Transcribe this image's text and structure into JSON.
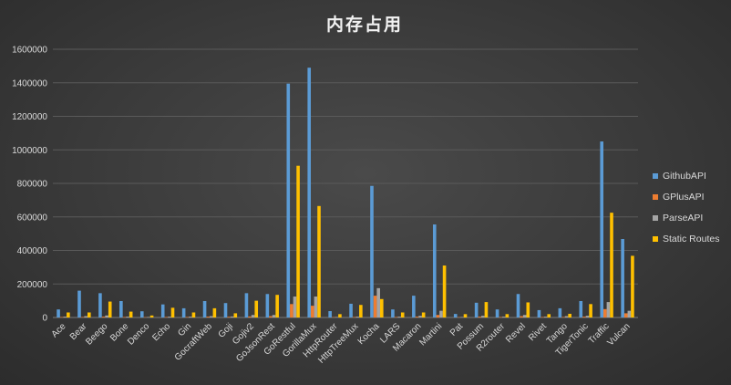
{
  "chart_data": {
    "type": "bar",
    "title": "内存占用",
    "categories": [
      "Ace",
      "Bear",
      "Beego",
      "Bone",
      "Denco",
      "Echo",
      "Gin",
      "GocraftWeb",
      "Goji",
      "Gojiv2",
      "GoJsonRest",
      "GoRestful",
      "GorillaMux",
      "HttpRouter",
      "HttpTreeMux",
      "Kocha",
      "LARS",
      "Macaron",
      "Martini",
      "Pat",
      "Possum",
      "R2router",
      "Revel",
      "Rivet",
      "Tango",
      "TigerTonic",
      "Traffic",
      "Vulcan"
    ],
    "series": [
      {
        "name": "GithubAPI",
        "color": "#5b9bd5",
        "values": [
          48000,
          160000,
          145000,
          98000,
          37000,
          78000,
          55000,
          98000,
          86000,
          145000,
          140000,
          1395000,
          1490000,
          38000,
          82000,
          785000,
          48000,
          130000,
          555000,
          21000,
          88000,
          48000,
          140000,
          44000,
          55000,
          98000,
          1050000,
          468000
        ]
      },
      {
        "name": "GPlusAPI",
        "color": "#ed7d31",
        "values": [
          3000,
          3000,
          5000,
          3000,
          2000,
          3000,
          3000,
          5000,
          4000,
          6000,
          8000,
          80000,
          70000,
          2000,
          3000,
          130000,
          3000,
          5000,
          15000,
          2000,
          5000,
          3000,
          8000,
          3000,
          3000,
          5000,
          50000,
          25000
        ]
      },
      {
        "name": "ParseAPI",
        "color": "#a5a5a5",
        "values": [
          5000,
          8000,
          12000,
          5000,
          3000,
          5000,
          5000,
          8000,
          6000,
          15000,
          15000,
          125000,
          125000,
          3000,
          5000,
          175000,
          5000,
          10000,
          40000,
          3000,
          10000,
          5000,
          15000,
          5000,
          8000,
          10000,
          92000,
          40000
        ]
      },
      {
        "name": "Static Routes",
        "color": "#ffc000",
        "values": [
          30000,
          30000,
          95000,
          35000,
          12000,
          58000,
          30000,
          55000,
          25000,
          100000,
          135000,
          905000,
          665000,
          20000,
          75000,
          110000,
          30000,
          30000,
          310000,
          20000,
          92000,
          20000,
          90000,
          20000,
          22000,
          80000,
          625000,
          368000
        ]
      }
    ],
    "yticks": [
      "0",
      "200000",
      "400000",
      "600000",
      "800000",
      "1000000",
      "1200000",
      "1400000",
      "1600000"
    ],
    "ylim": [
      0,
      1600000
    ],
    "grid": true,
    "legend": "right"
  }
}
